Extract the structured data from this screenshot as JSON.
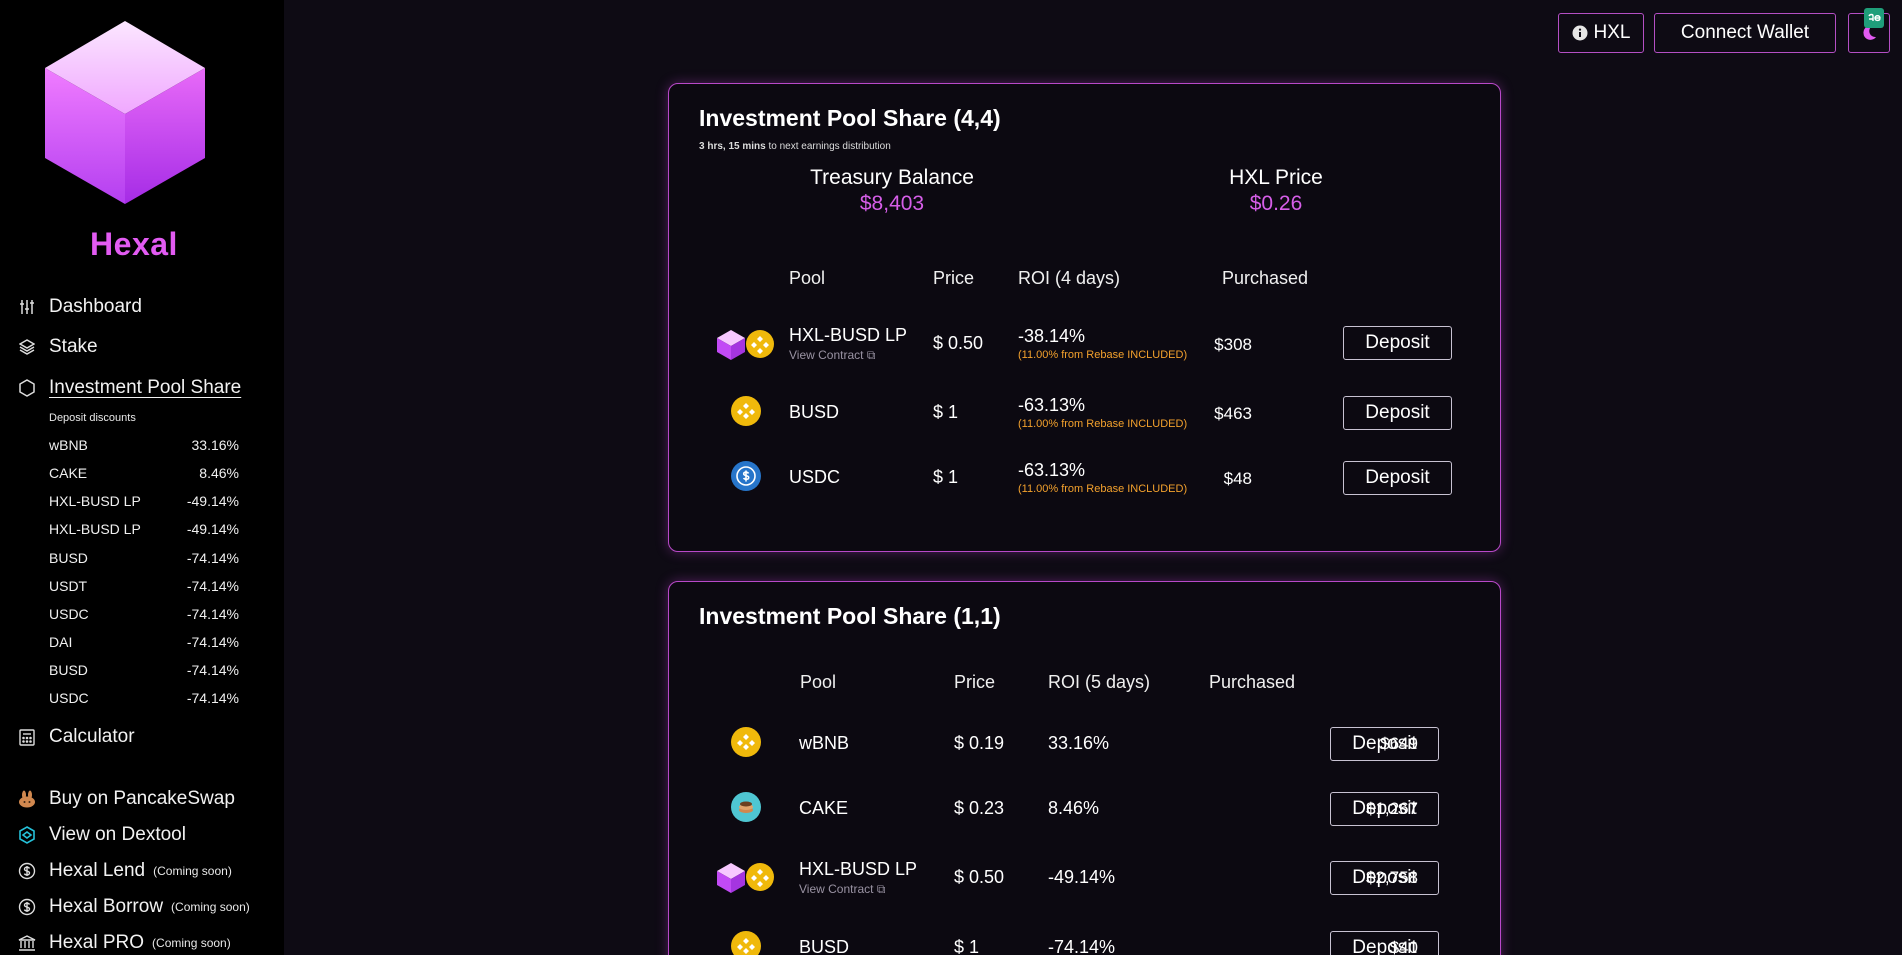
{
  "brand": "Hexal",
  "colors": {
    "accent": "#d65ee8",
    "note": "#f3a12d",
    "binance_yellow": "#f0b90b",
    "usdc_blue": "#2775ca"
  },
  "nav": {
    "dashboard": "Dashboard",
    "stake": "Stake",
    "ips": "Investment Pool Share",
    "calculator": "Calculator",
    "buy": "Buy on PancakeSwap",
    "dextool": "View on Dextool",
    "lend": "Hexal Lend",
    "borrow": "Hexal Borrow",
    "pro": "Hexal PRO",
    "coming_soon": "(Coming soon)"
  },
  "discounts": {
    "title": "Deposit discounts",
    "items": [
      {
        "name": "wBNB",
        "value": "33.16%"
      },
      {
        "name": "CAKE",
        "value": "8.46%"
      },
      {
        "name": "HXL-BUSD LP",
        "value": "-49.14%"
      },
      {
        "name": "HXL-BUSD LP",
        "value": "-49.14%"
      },
      {
        "name": "BUSD",
        "value": "-74.14%"
      },
      {
        "name": "USDT",
        "value": "-74.14%"
      },
      {
        "name": "USDC",
        "value": "-74.14%"
      },
      {
        "name": "DAI",
        "value": "-74.14%"
      },
      {
        "name": "BUSD",
        "value": "-74.14%"
      },
      {
        "name": "USDC",
        "value": "-74.14%"
      }
    ]
  },
  "topbar": {
    "hxl": "HXL",
    "connect": "Connect Wallet"
  },
  "card1": {
    "title": "Investment Pool Share (4,4)",
    "countdown_bold": "3 hrs, 15 mins",
    "countdown_rest": " to next earnings distribution",
    "treasury_label": "Treasury Balance",
    "treasury_value": "$8,403",
    "price_label": "HXL Price",
    "price_value": "$0.26",
    "headers": {
      "pool": "Pool",
      "price": "Price",
      "roi": "ROI (4 days)",
      "purchased": "Purchased"
    },
    "rows": [
      {
        "pool": "HXL-BUSD LP",
        "link": "View Contract",
        "price": "$ 0.50",
        "roi": "-38.14%",
        "note": "(11.00% from Rebase INCLUDED)",
        "purchased": "$308",
        "action": "Deposit",
        "icon": "hxl-busd-lp-icon"
      },
      {
        "pool": "BUSD",
        "price": "$ 1",
        "roi": "-63.13%",
        "note": "(11.00% from Rebase INCLUDED)",
        "purchased": "$463",
        "action": "Deposit",
        "icon": "busd-icon"
      },
      {
        "pool": "USDC",
        "price": "$ 1",
        "roi": "-63.13%",
        "note": "(11.00% from Rebase INCLUDED)",
        "purchased": "$48",
        "action": "Deposit",
        "icon": "usdc-icon"
      }
    ]
  },
  "card2": {
    "title": "Investment Pool Share (1,1)",
    "headers": {
      "pool": "Pool",
      "price": "Price",
      "roi": "ROI (5 days)",
      "purchased": "Purchased"
    },
    "rows": [
      {
        "pool": "wBNB",
        "price": "$ 0.19",
        "roi": "33.16%",
        "purchased": "$649",
        "action": "Deposit",
        "icon": "bnb-icon"
      },
      {
        "pool": "CAKE",
        "price": "$ 0.23",
        "roi": "8.46%",
        "purchased": "$1,267",
        "action": "Deposit",
        "icon": "cake-icon"
      },
      {
        "pool": "HXL-BUSD LP",
        "link": "View Contract",
        "price": "$ 0.50",
        "roi": "-49.14%",
        "purchased": "$2,758",
        "action": "Deposit",
        "icon": "hxl-busd-lp-icon"
      },
      {
        "pool": "BUSD",
        "price": "$ 1",
        "roi": "-74.14%",
        "purchased": "$40",
        "action": "Deposit",
        "icon": "busd-icon"
      }
    ]
  }
}
